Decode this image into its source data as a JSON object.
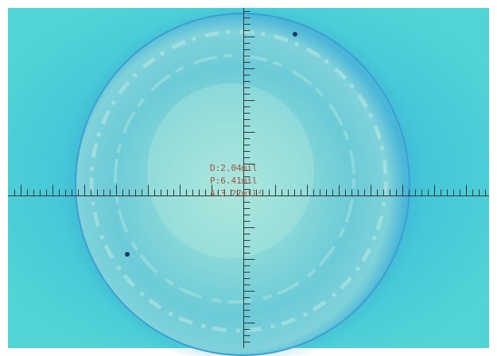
{
  "measurements": {
    "diameter": "D:2.04mil",
    "perimeter": "P:6.41mil",
    "area": "A:3.27mil²"
  }
}
